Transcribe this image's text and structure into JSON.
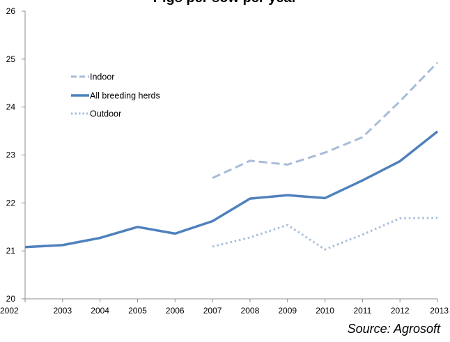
{
  "title": "Pigs per sow per year",
  "source": "Source: Agrosoft",
  "colors": {
    "indoor": "#a7bcd9",
    "all": "#4f81bd",
    "outdoor": "#a7bcd9",
    "axis": "#8c8c8c"
  },
  "chart_data": {
    "type": "line",
    "title": "Pigs per sow per year",
    "xlabel": "",
    "ylabel": "",
    "ylim": [
      20,
      26
    ],
    "yticks": [
      20,
      21,
      22,
      23,
      24,
      25,
      26
    ],
    "x": [
      2002,
      2003,
      2004,
      2005,
      2006,
      2007,
      2008,
      2009,
      2010,
      2011,
      2012,
      2013
    ],
    "grid": false,
    "legend_position": "top-left",
    "series": [
      {
        "name": "Indoor",
        "style": "dashed",
        "values": [
          null,
          null,
          null,
          null,
          null,
          22.52,
          22.88,
          22.8,
          23.05,
          23.37,
          24.12,
          24.93
        ]
      },
      {
        "name": "All breeding herds",
        "style": "solid",
        "values": [
          21.08,
          21.12,
          21.27,
          21.5,
          21.36,
          21.62,
          22.09,
          22.16,
          22.1,
          22.47,
          22.87,
          23.49
        ]
      },
      {
        "name": "Outdoor",
        "style": "dotted",
        "values": [
          null,
          null,
          null,
          null,
          null,
          21.09,
          21.28,
          21.54,
          21.03,
          21.34,
          21.68,
          21.69
        ]
      }
    ]
  }
}
